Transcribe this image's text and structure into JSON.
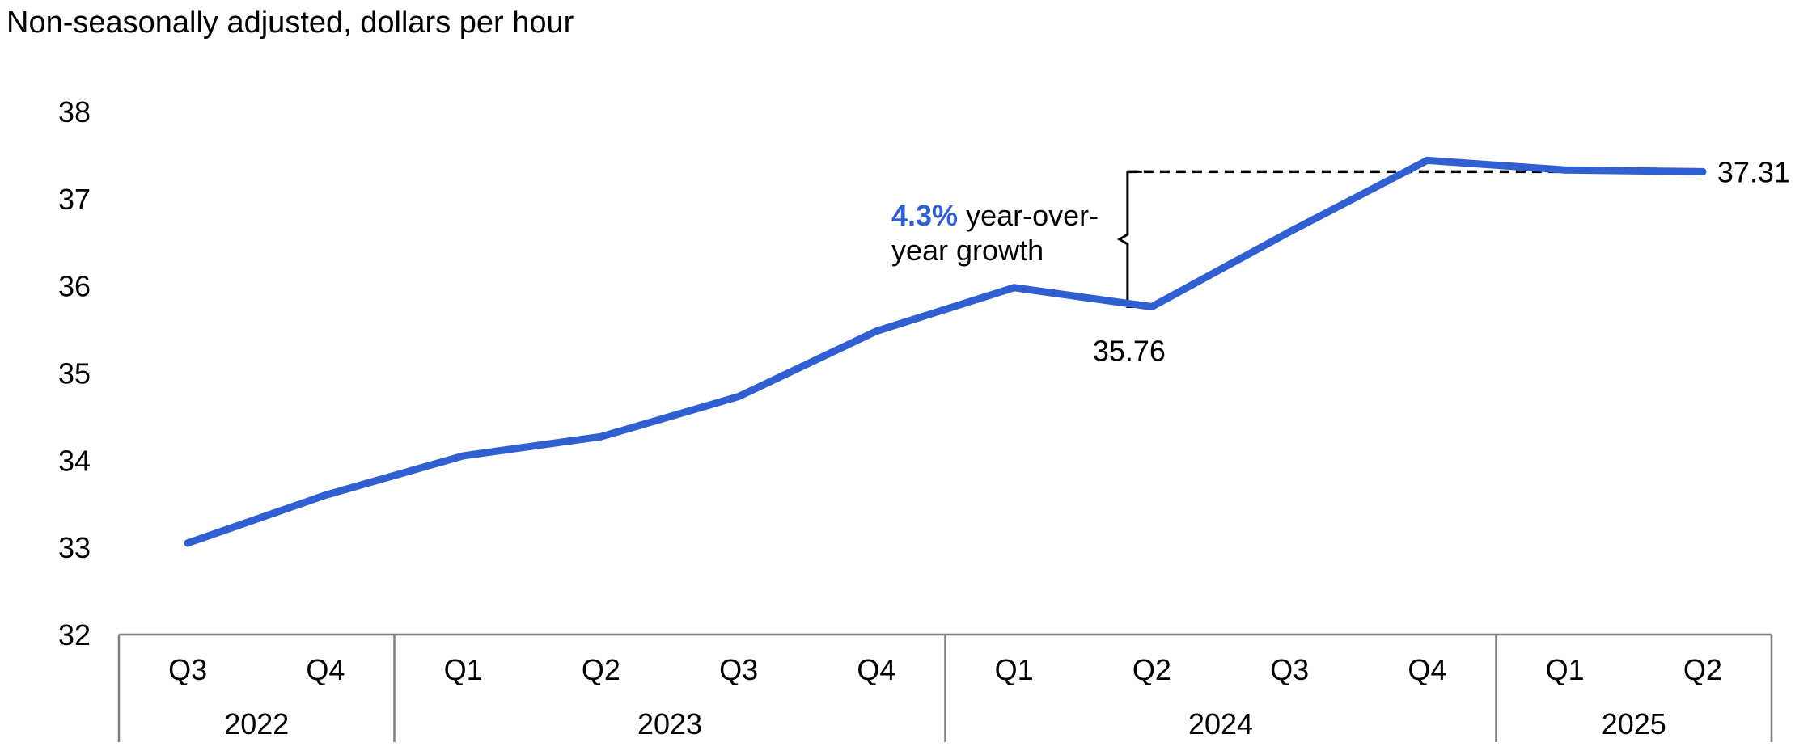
{
  "chart_data": {
    "type": "line",
    "subtitle": "Non-seasonally adjusted, dollars per hour",
    "x": [
      "Q3",
      "Q4",
      "Q1",
      "Q2",
      "Q3",
      "Q4",
      "Q1",
      "Q2",
      "Q3",
      "Q4",
      "Q1",
      "Q2"
    ],
    "years": [
      {
        "label": "2022",
        "count": 2
      },
      {
        "label": "2023",
        "count": 4
      },
      {
        "label": "2024",
        "count": 4
      },
      {
        "label": "2025",
        "count": 2
      }
    ],
    "series": [
      {
        "values": [
          33.05,
          33.6,
          34.05,
          34.27,
          34.73,
          35.48,
          35.98,
          35.76,
          36.62,
          37.44,
          37.33,
          37.31
        ]
      }
    ],
    "ylim": [
      32,
      38
    ],
    "yticks": [
      32,
      33,
      34,
      35,
      36,
      37,
      38
    ],
    "grid": false,
    "colors": {
      "line": "#2f5fd0",
      "highlight": "#2f5fd0",
      "axis": "#7f7f7f",
      "text": "#000000"
    },
    "annotations": {
      "start_label": "35.76",
      "end_label": "37.31",
      "growth_value": "4.3%",
      "growth_text_line1": " year-over-",
      "growth_text_line2": "year growth"
    }
  }
}
